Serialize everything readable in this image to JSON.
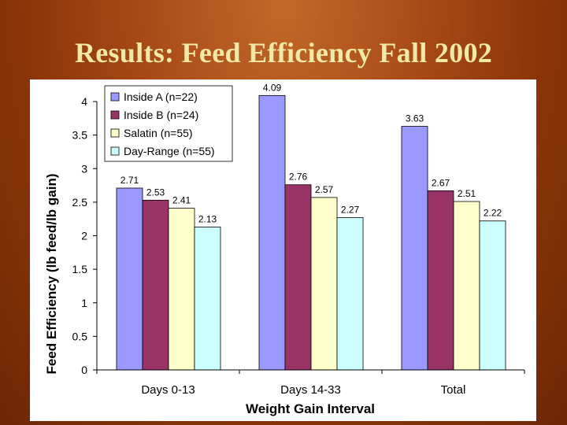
{
  "slide": {
    "title": "Results: Feed Efficiency Fall 2002"
  },
  "colors": {
    "inside_a": "#9999ff",
    "inside_b": "#993366",
    "salatin": "#ffffcc",
    "day_range": "#ccffff"
  },
  "chart_data": {
    "type": "bar",
    "title": "",
    "xlabel": "Weight Gain Interval",
    "ylabel": "Feed Efficiency (lb feed/lb gain)",
    "categories": [
      "Days 0-13",
      "Days 14-33",
      "Total"
    ],
    "series": [
      {
        "name": "Inside A (n=22)",
        "color": "#9999ff",
        "values": [
          2.71,
          4.09,
          3.63
        ]
      },
      {
        "name": "Inside B (n=24)",
        "color": "#993366",
        "values": [
          2.53,
          2.76,
          2.67
        ]
      },
      {
        "name": "Salatin (n=55)",
        "color": "#ffffcc",
        "values": [
          2.41,
          2.57,
          2.51
        ]
      },
      {
        "name": "Day-Range (n=55)",
        "color": "#ccffff",
        "values": [
          2.13,
          2.27,
          2.22
        ]
      }
    ],
    "value_labels": [
      [
        "2.71",
        "4.09",
        "3.63"
      ],
      [
        "2.53",
        "2.76",
        "2.67"
      ],
      [
        "2.41",
        "2.57",
        "2.51"
      ],
      [
        "2.13",
        "2.27",
        "2.22"
      ]
    ],
    "ylim": [
      0,
      4
    ],
    "yticks": [
      "0",
      "0.5",
      "1",
      "1.5",
      "2",
      "2.5",
      "3",
      "3.5",
      "4"
    ],
    "grid": false,
    "legend": "top-left"
  }
}
